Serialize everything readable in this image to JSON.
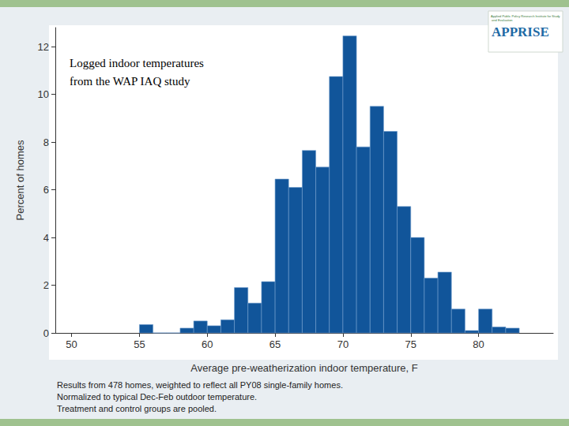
{
  "chart_data": {
    "type": "histogram",
    "annotation": [
      "Logged indoor temperatures",
      "from the WAP IAQ study"
    ],
    "x_label": "Average pre-weatherization indoor temperature, F",
    "y_label": "Percent of homes",
    "notes": [
      "Results from 478 homes, weighted to reflect all PY08 single-family homes.",
      "Normalized to typical Dec-Feb outdoor temperature.",
      "Treatment and control groups are pooled."
    ],
    "logo": {
      "title": "APPRISE",
      "subtitle": "Applied Public Policy Research Institute for Study and Evaluation"
    },
    "bins": [
      55,
      56,
      57,
      58,
      59,
      60,
      61,
      62,
      63,
      64,
      65,
      66,
      67,
      68,
      69,
      70,
      71,
      72,
      73,
      74,
      75,
      76,
      77,
      78,
      79,
      80,
      81,
      82,
      83
    ],
    "values": [
      0.35,
      0,
      0,
      0.2,
      0.5,
      0.3,
      0.55,
      1.9,
      1.25,
      2.15,
      6.45,
      6.1,
      7.65,
      6.95,
      10.75,
      12.45,
      7.8,
      9.5,
      8.45,
      5.3,
      4.0,
      2.3,
      2.55,
      1.0,
      0.1,
      1.0,
      0.25,
      0.2
    ],
    "color": "#11559a",
    "xlim": [
      48.8,
      85.5
    ],
    "xticks": [
      50,
      55,
      60,
      65,
      70,
      75,
      80
    ],
    "ylim": [
      0,
      12.8
    ],
    "yticks": [
      0,
      2,
      4,
      6,
      8,
      10,
      12
    ],
    "grid": false
  }
}
